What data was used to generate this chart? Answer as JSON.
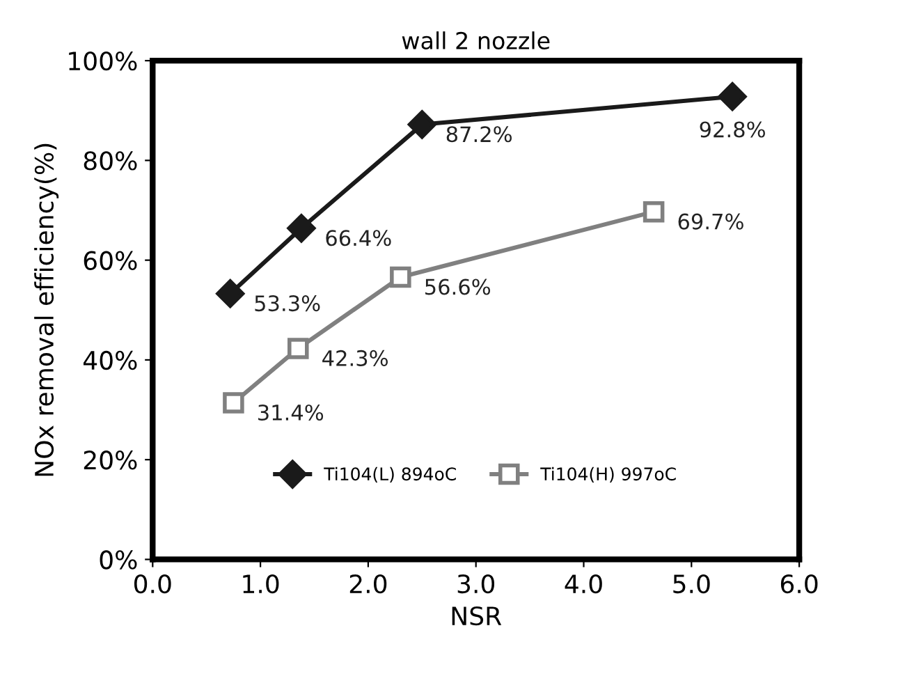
{
  "chart_data": {
    "type": "line",
    "title": "wall 2 nozzle",
    "xlabel": "NSR",
    "ylabel": "NOx removal efficiency(%)",
    "xlim": [
      0,
      6
    ],
    "xticks": [
      {
        "value": 0,
        "label": "0.0"
      },
      {
        "value": 1,
        "label": "1.0"
      },
      {
        "value": 2,
        "label": "2.0"
      },
      {
        "value": 3,
        "label": "3.0"
      },
      {
        "value": 4,
        "label": "4.0"
      },
      {
        "value": 5,
        "label": "5.0"
      },
      {
        "value": 6,
        "label": "6.0"
      }
    ],
    "ylim": [
      0,
      100
    ],
    "yticks": [
      {
        "value": 0,
        "label": "0%"
      },
      {
        "value": 20,
        "label": "20%"
      },
      {
        "value": 40,
        "label": "40%"
      },
      {
        "value": 60,
        "label": "60%"
      },
      {
        "value": 80,
        "label": "80%"
      },
      {
        "value": 100,
        "label": "100%"
      }
    ],
    "grid": false,
    "legend": "bottom",
    "line_style": "solid",
    "series": [
      {
        "name": "Ti104(L) 894oC",
        "color": "#1a1a1a",
        "marker": "diamond",
        "x": [
          0.72,
          1.38,
          2.5,
          5.38
        ],
        "values": [
          53.3,
          66.4,
          87.2,
          92.8
        ],
        "value_labels": [
          "53.3%",
          "66.4%",
          "87.2%",
          "92.8%"
        ]
      },
      {
        "name": "Ti104(H) 997oC",
        "color": "#808080",
        "marker": "square",
        "x": [
          0.75,
          1.35,
          2.3,
          4.65
        ],
        "values": [
          31.4,
          42.3,
          56.6,
          69.7
        ],
        "value_labels": [
          "31.4%",
          "42.3%",
          "56.6%",
          "69.7%"
        ]
      }
    ]
  }
}
